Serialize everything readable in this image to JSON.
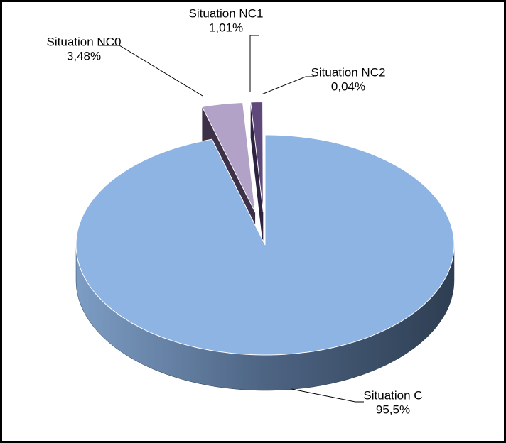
{
  "chart_data": {
    "type": "pie",
    "categories": [
      "Situation C",
      "Situation NC0",
      "Situation NC1",
      "Situation NC2"
    ],
    "values": [
      95.5,
      3.48,
      1.01,
      0.04
    ],
    "value_labels": [
      "95,5%",
      "3,48%",
      "1,01%",
      "0,04%"
    ],
    "colors": [
      "#8eb4e3",
      "#b3a2c7",
      "#5f497a",
      "#3f3151"
    ]
  }
}
